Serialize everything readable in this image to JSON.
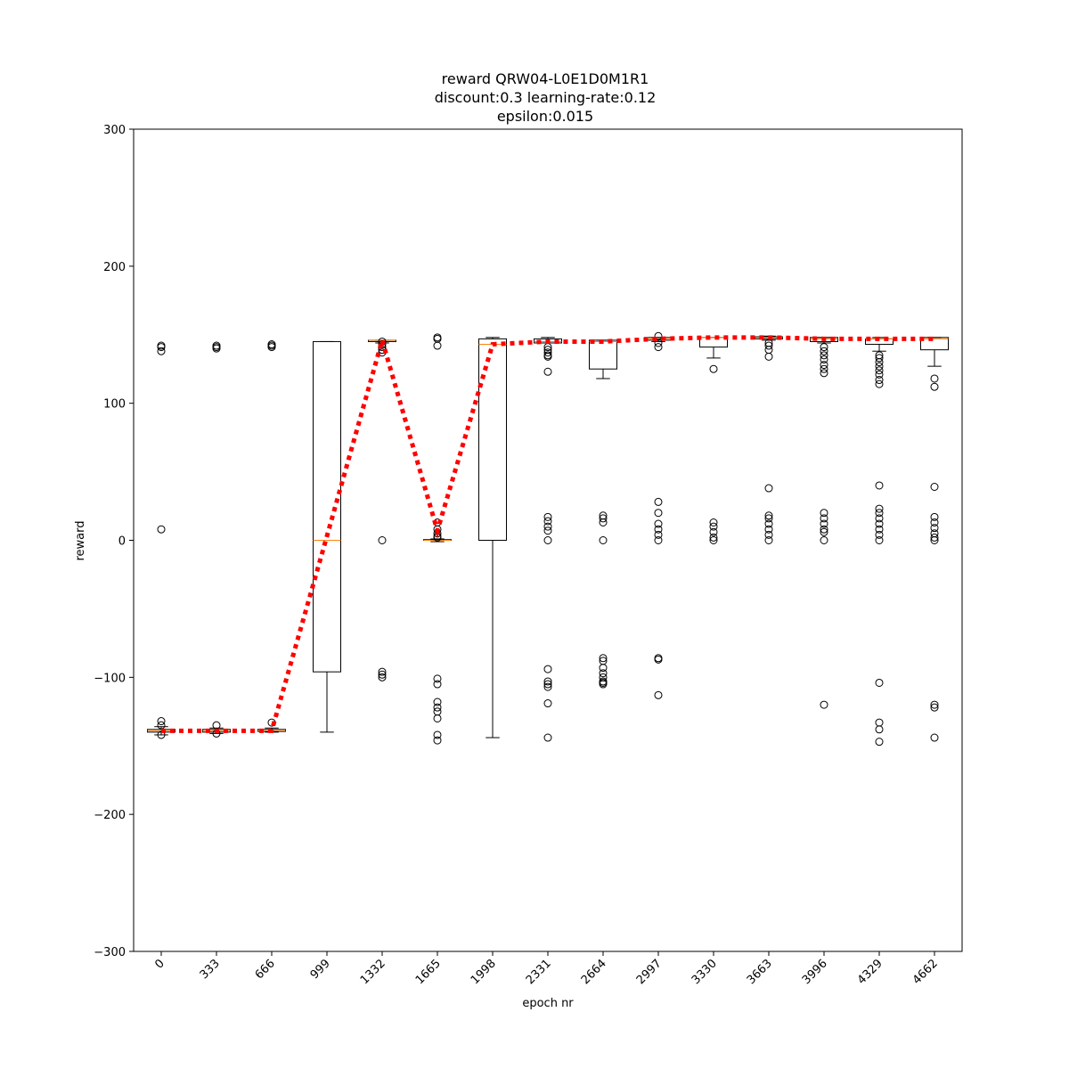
{
  "chart_data": {
    "type": "boxplot",
    "title": [
      "reward QRW04-L0E1D0M1R1",
      "discount:0.3 learning-rate:0.12",
      "epsilon:0.015"
    ],
    "x_label": "epoch nr",
    "y_label": "reward",
    "categories": [
      "0",
      "333",
      "666",
      "999",
      "1332",
      "1665",
      "1998",
      "2331",
      "2664",
      "2997",
      "3330",
      "3663",
      "3996",
      "4329",
      "4662"
    ],
    "ylim": [
      -300,
      300
    ],
    "yticks": [
      {
        "value": -300,
        "label": "−300"
      },
      {
        "value": -200,
        "label": "−200"
      },
      {
        "value": -100,
        "label": "−100"
      },
      0,
      100,
      200,
      300
    ],
    "box_color": "#000000",
    "median_color": "#ff7f0e",
    "boxes": [
      {
        "whislo": -142,
        "q1": -140,
        "med": -139,
        "q3": -138,
        "whishi": -136,
        "fliers": [
          142,
          141,
          138,
          8,
          -132,
          -135,
          -142
        ]
      },
      {
        "whislo": -141,
        "q1": -140,
        "med": -139,
        "q3": -138,
        "whishi": -137,
        "fliers": [
          142,
          141,
          140,
          -135,
          -141
        ]
      },
      {
        "whislo": -140,
        "q1": -139.5,
        "med": -139,
        "q3": -138,
        "whishi": -137,
        "fliers": [
          143,
          142,
          141,
          -133
        ]
      },
      {
        "whislo": -140,
        "q1": -96,
        "med": 0,
        "q3": 145,
        "whishi": 145,
        "fliers": []
      },
      {
        "whislo": 144,
        "q1": 145,
        "med": 146,
        "q3": 146,
        "whishi": 146,
        "fliers": [
          145,
          143,
          141,
          139,
          137,
          0,
          -96,
          -98,
          -100
        ]
      },
      {
        "whislo": -1,
        "q1": 0,
        "med": 0,
        "q3": 0.5,
        "whishi": 1,
        "fliers": [
          148,
          147,
          142,
          13,
          8,
          5,
          3,
          2,
          -101,
          -105,
          -118,
          -122,
          -125,
          -130,
          -142,
          -146
        ]
      },
      {
        "whislo": -144,
        "q1": 0,
        "med": 143,
        "q3": 147,
        "whishi": 148,
        "fliers": []
      },
      {
        "whislo": 144,
        "q1": 144,
        "med": 145,
        "q3": 147,
        "whishi": 148,
        "fliers": [
          141,
          139,
          137,
          135,
          134,
          123,
          17,
          14,
          10,
          7,
          0,
          -94,
          -103,
          -105,
          -107,
          -119,
          -144
        ]
      },
      {
        "whislo": 118,
        "q1": 125,
        "med": 145,
        "q3": 146,
        "whishi": 146,
        "fliers": [
          18,
          16,
          13,
          0,
          -86,
          -88,
          -93,
          -97,
          -100,
          -103,
          -104,
          -105
        ]
      },
      {
        "whislo": 145,
        "q1": 146,
        "med": 147,
        "q3": 148,
        "whishi": 148,
        "fliers": [
          149,
          144,
          141,
          28,
          20,
          12,
          8,
          4,
          0,
          -86,
          -87,
          -113
        ]
      },
      {
        "whislo": 133,
        "q1": 141,
        "med": 148,
        "q3": 148,
        "whishi": 148,
        "fliers": [
          125,
          13,
          10,
          6,
          2,
          0
        ]
      },
      {
        "whislo": 146,
        "q1": 147,
        "med": 148,
        "q3": 148.5,
        "whishi": 149,
        "fliers": [
          144,
          142,
          139,
          134,
          38,
          18,
          16,
          12,
          8,
          4,
          0
        ]
      },
      {
        "whislo": 144,
        "q1": 145,
        "med": 147,
        "q3": 148,
        "whishi": 148,
        "fliers": [
          141,
          138,
          135,
          132,
          128,
          125,
          122,
          20,
          16,
          12,
          8,
          6,
          0,
          -120
        ]
      },
      {
        "whislo": 138,
        "q1": 143,
        "med": 147,
        "q3": 147,
        "whishi": 148,
        "fliers": [
          135,
          133,
          130,
          127,
          124,
          121,
          117,
          114,
          40,
          23,
          20,
          16,
          12,
          8,
          4,
          0,
          -104,
          -133,
          -138,
          -147
        ]
      },
      {
        "whislo": 127,
        "q1": 139,
        "med": 147,
        "q3": 148,
        "whishi": 148,
        "fliers": [
          118,
          112,
          39,
          17,
          13,
          9,
          5,
          2,
          0,
          -120,
          -122,
          -144
        ]
      }
    ],
    "trend": {
      "color": "#ff0000",
      "values": [
        -139,
        -139,
        -139,
        3,
        146,
        7,
        143,
        145,
        145,
        147,
        148,
        148,
        147,
        147,
        147
      ]
    }
  }
}
